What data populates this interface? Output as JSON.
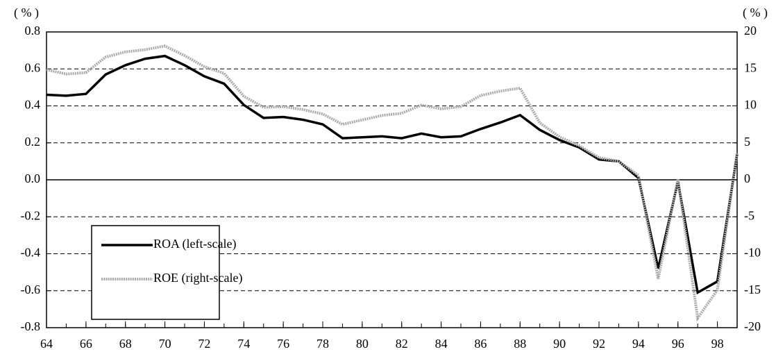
{
  "chart_data": {
    "type": "line",
    "y_label": "( % )",
    "y2_label": "( % )",
    "x": [
      64,
      65,
      66,
      67,
      68,
      69,
      70,
      71,
      72,
      73,
      74,
      75,
      76,
      77,
      78,
      79,
      80,
      81,
      82,
      83,
      84,
      85,
      86,
      87,
      88,
      89,
      90,
      91,
      92,
      93,
      94,
      95,
      96,
      97,
      98,
      99
    ],
    "xlim": [
      64,
      99
    ],
    "xticks": [
      64,
      66,
      68,
      70,
      72,
      74,
      76,
      78,
      80,
      82,
      84,
      86,
      88,
      90,
      92,
      94,
      96,
      98
    ],
    "ylim": [
      -0.8,
      0.8
    ],
    "yticks": [
      0.8,
      0.6,
      0.4,
      0.2,
      {
        "value": 0,
        "label": "0.0"
      },
      -0.2,
      -0.4,
      -0.6,
      -0.8
    ],
    "y2lim": [
      -20,
      20
    ],
    "y2ticks": [
      20,
      15,
      10,
      5,
      0,
      -5,
      -10,
      -15,
      -20
    ],
    "grid": true,
    "legend": "lower left",
    "series": [
      {
        "name": "ROA (left-scale)",
        "color": "#000000",
        "values": [
          0.46,
          0.455,
          0.465,
          0.57,
          0.62,
          0.655,
          0.67,
          0.62,
          0.56,
          0.52,
          0.405,
          0.335,
          0.34,
          0.325,
          0.3,
          0.225,
          0.23,
          0.235,
          0.225,
          0.25,
          0.23,
          0.235,
          0.275,
          0.31,
          0.35,
          0.27,
          0.215,
          0.175,
          0.11,
          0.1,
          0.01,
          -0.48,
          -0.01,
          -0.61,
          -0.55,
          0.14
        ]
      },
      {
        "name": "ROE (right-scale)",
        "color": "#aaaaaa",
        "axis": "y2",
        "values": [
          14.9,
          14.3,
          14.5,
          16.6,
          17.3,
          17.6,
          18.1,
          16.8,
          15.3,
          14.4,
          11.3,
          9.8,
          9.9,
          9.5,
          8.9,
          7.5,
          8.1,
          8.7,
          9.0,
          10.1,
          9.6,
          9.9,
          11.4,
          12.0,
          12.4,
          7.7,
          5.8,
          4.6,
          3.0,
          2.5,
          0.6,
          -13.4,
          0.1,
          -18.7,
          -14.9,
          3.7
        ]
      }
    ]
  }
}
